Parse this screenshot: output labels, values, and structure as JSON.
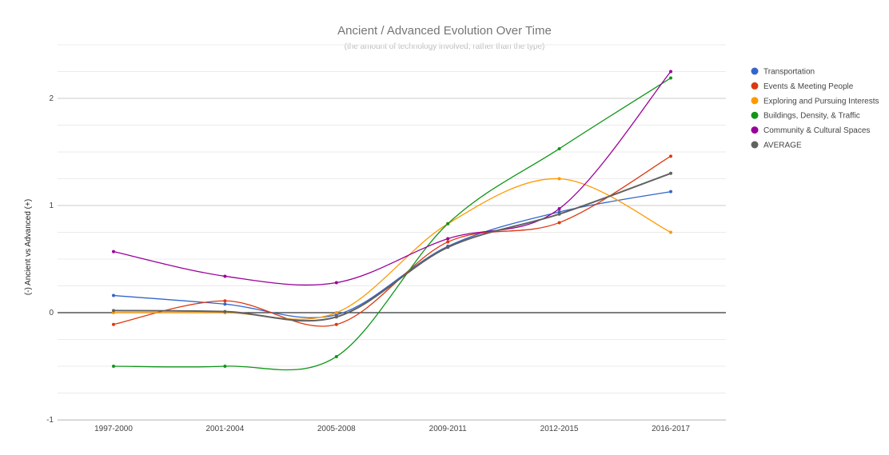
{
  "chart_data": {
    "type": "line",
    "title": "Ancient / Advanced Evolution Over Time",
    "subtitle": "(the amount of technology involved, rather than the type)",
    "xlabel": "",
    "ylabel": "(-) Ancient vs Advanced (+)",
    "categories": [
      "1997-2000",
      "2001-2004",
      "2005-2008",
      "2009-2011",
      "2012-2015",
      "2016-2017"
    ],
    "ylim": [
      -1,
      2.5
    ],
    "yticks": [
      -1,
      0,
      1,
      2
    ],
    "ytick_labels": [
      "-1",
      "0",
      "1",
      "2"
    ],
    "grid": true,
    "legend_position": "right",
    "series": [
      {
        "name": "Transportation",
        "color": "#3366cc",
        "values": [
          0.16,
          0.08,
          -0.02,
          0.62,
          0.94,
          1.13
        ]
      },
      {
        "name": "Events & Meeting People",
        "color": "#dc3912",
        "values": [
          -0.11,
          0.11,
          -0.11,
          0.66,
          0.84,
          1.46
        ]
      },
      {
        "name": "Exploring and Pursuing Interests",
        "color": "#ff9900",
        "values": [
          0.0,
          0.0,
          0.0,
          0.83,
          1.25,
          0.75
        ]
      },
      {
        "name": "Buildings, Density, & Traffic",
        "color": "#109618",
        "values": [
          -0.5,
          -0.5,
          -0.41,
          0.83,
          1.53,
          2.19
        ]
      },
      {
        "name": "Community & Cultural Spaces",
        "color": "#990099",
        "values": [
          0.57,
          0.34,
          0.28,
          0.69,
          0.97,
          2.25
        ]
      },
      {
        "name": "AVERAGE",
        "color": "#616161",
        "values": [
          0.02,
          0.01,
          -0.04,
          0.61,
          0.92,
          1.3
        ]
      }
    ]
  }
}
